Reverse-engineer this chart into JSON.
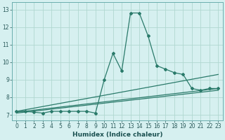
{
  "xlabel": "Humidex (Indice chaleur)",
  "background_color": "#d6f0f0",
  "grid_color": "#b0d8d0",
  "line_color": "#2a7a6a",
  "xlim": [
    -0.5,
    23.5
  ],
  "ylim": [
    6.7,
    13.4
  ],
  "xticks": [
    0,
    1,
    2,
    3,
    4,
    5,
    6,
    7,
    8,
    9,
    10,
    11,
    12,
    13,
    14,
    15,
    16,
    17,
    18,
    19,
    20,
    21,
    22,
    23
  ],
  "yticks": [
    7,
    8,
    9,
    10,
    11,
    12,
    13
  ],
  "series_main": {
    "x": [
      0,
      1,
      2,
      3,
      4,
      5,
      6,
      7,
      8,
      9,
      10,
      11,
      12,
      13,
      14,
      15,
      16,
      17,
      18,
      19,
      20,
      21,
      22,
      23
    ],
    "y": [
      7.2,
      7.2,
      7.15,
      7.1,
      7.2,
      7.2,
      7.2,
      7.2,
      7.2,
      7.1,
      9.0,
      10.5,
      9.5,
      12.8,
      12.8,
      11.5,
      9.8,
      9.6,
      9.4,
      9.3,
      8.5,
      8.4,
      8.5,
      8.5
    ]
  },
  "trend_lines": [
    {
      "x": [
        0,
        23
      ],
      "y": [
        7.2,
        9.3
      ]
    },
    {
      "x": [
        0,
        23
      ],
      "y": [
        7.15,
        8.5
      ]
    },
    {
      "x": [
        0,
        23
      ],
      "y": [
        7.1,
        8.4
      ]
    }
  ]
}
